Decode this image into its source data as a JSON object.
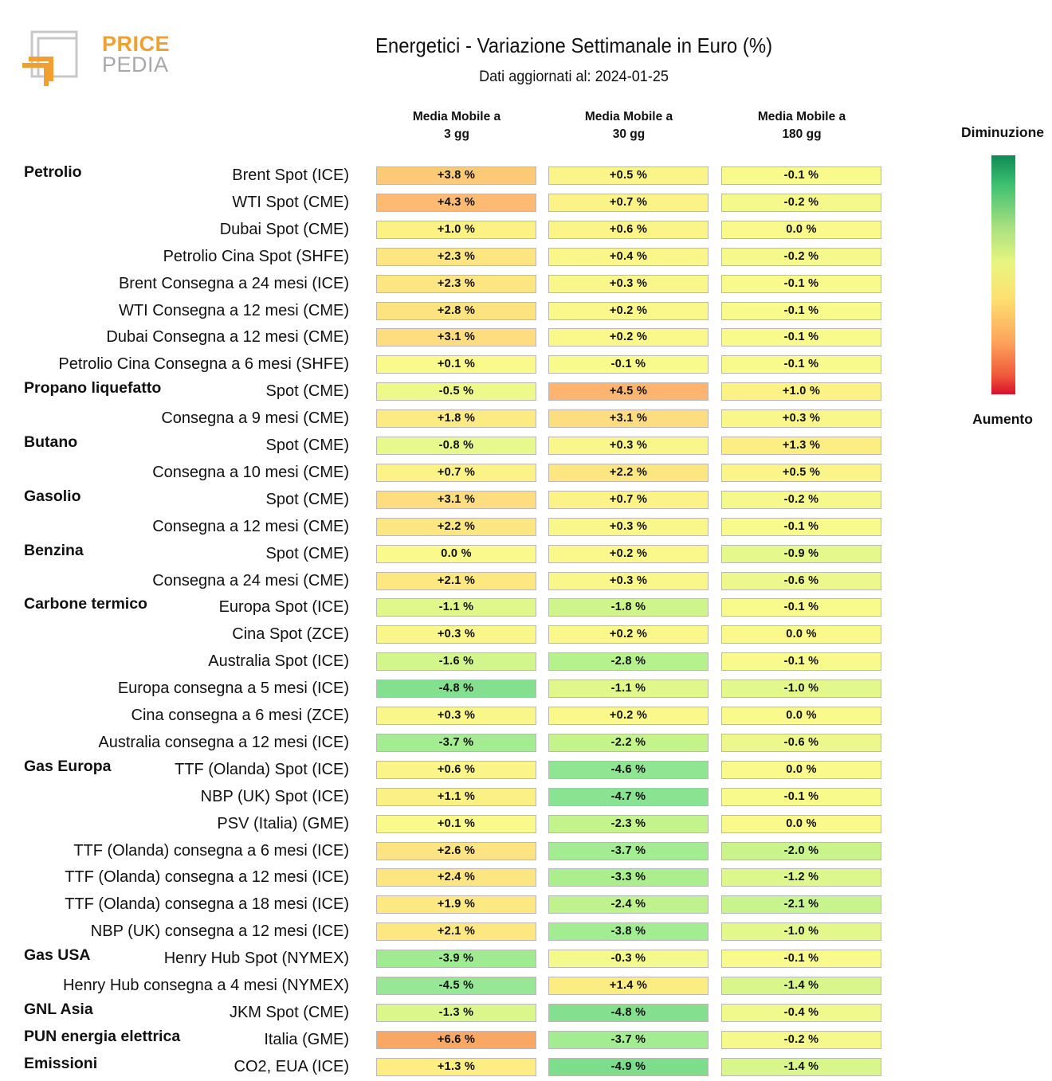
{
  "header": {
    "logo_top": "PRICE",
    "logo_bottom": "PEDIA",
    "title": "Energetici - Variazione Settimanale in Euro (%)",
    "subtitle": "Dati aggiornati al: 2024-01-25"
  },
  "legend": {
    "top_label": "Diminuzione",
    "bottom_label": "Aumento",
    "colors": [
      "#0e8a55",
      "#a8e080",
      "#e8f580",
      "#fde070",
      "#fca45c",
      "#d8102a"
    ]
  },
  "chart_data": {
    "type": "table",
    "columns": [
      "Media Mobile a\n3 gg",
      "Media Mobile a\n30 gg",
      "Media Mobile a\n180 gg"
    ],
    "groups": [
      {
        "name": "Petrolio",
        "rows": [
          {
            "label": "Brent Spot (ICE)",
            "values": [
              "+3.8 %",
              "+0.5 %",
              "-0.1 %"
            ]
          },
          {
            "label": "WTI Spot (CME)",
            "values": [
              "+4.3 %",
              "+0.7 %",
              "-0.2 %"
            ]
          },
          {
            "label": "Dubai Spot (CME)",
            "values": [
              "+1.0 %",
              "+0.6 %",
              "0.0 %"
            ]
          },
          {
            "label": "Petrolio Cina Spot (SHFE)",
            "values": [
              "+2.3 %",
              "+0.4 %",
              "-0.2 %"
            ]
          },
          {
            "label": "Brent Consegna a 24 mesi (ICE)",
            "values": [
              "+2.3 %",
              "+0.3 %",
              "-0.1 %"
            ]
          },
          {
            "label": "WTI Consegna a 12 mesi (CME)",
            "values": [
              "+2.8 %",
              "+0.2 %",
              "-0.1 %"
            ]
          },
          {
            "label": "Dubai Consegna a 12 mesi (CME)",
            "values": [
              "+3.1 %",
              "+0.2 %",
              "-0.1 %"
            ]
          },
          {
            "label": "Petrolio Cina Consegna a 6 mesi (SHFE)",
            "values": [
              "+0.1 %",
              "-0.1 %",
              "-0.1 %"
            ]
          }
        ]
      },
      {
        "name": "Propano liquefatto",
        "rows": [
          {
            "label": "Spot (CME)",
            "values": [
              "-0.5 %",
              "+4.5 %",
              "+1.0 %"
            ]
          },
          {
            "label": "Consegna a 9 mesi (CME)",
            "values": [
              "+1.8 %",
              "+3.1 %",
              "+0.3 %"
            ]
          }
        ]
      },
      {
        "name": "Butano",
        "rows": [
          {
            "label": "Spot (CME)",
            "values": [
              "-0.8 %",
              "+0.3 %",
              "+1.3 %"
            ]
          },
          {
            "label": "Consegna a 10 mesi (CME)",
            "values": [
              "+0.7 %",
              "+2.2 %",
              "+0.5 %"
            ]
          }
        ]
      },
      {
        "name": "Gasolio",
        "rows": [
          {
            "label": "Spot (CME)",
            "values": [
              "+3.1 %",
              "+0.7 %",
              "-0.2 %"
            ]
          },
          {
            "label": "Consegna a 12 mesi (CME)",
            "values": [
              "+2.2 %",
              "+0.3 %",
              "-0.1 %"
            ]
          }
        ]
      },
      {
        "name": "Benzina",
        "rows": [
          {
            "label": "Spot (CME)",
            "values": [
              "0.0 %",
              "+0.2 %",
              "-0.9 %"
            ]
          },
          {
            "label": "Consegna a 24 mesi (CME)",
            "values": [
              "+2.1 %",
              "+0.3 %",
              "-0.6 %"
            ]
          }
        ]
      },
      {
        "name": "Carbone termico",
        "rows": [
          {
            "label": "Europa Spot (ICE)",
            "values": [
              "-1.1 %",
              "-1.8 %",
              "-0.1 %"
            ]
          },
          {
            "label": "Cina Spot (ZCE)",
            "values": [
              "+0.3 %",
              "+0.2 %",
              "0.0 %"
            ]
          },
          {
            "label": "Australia Spot (ICE)",
            "values": [
              "-1.6 %",
              "-2.8 %",
              "-0.1 %"
            ]
          },
          {
            "label": "Europa consegna a 5 mesi (ICE)",
            "values": [
              "-4.8 %",
              "-1.1 %",
              "-1.0 %"
            ]
          },
          {
            "label": "Cina consegna a 6 mesi (ZCE)",
            "values": [
              "+0.3 %",
              "+0.2 %",
              "0.0 %"
            ]
          },
          {
            "label": "Australia consegna a 12 mesi (ICE)",
            "values": [
              "-3.7 %",
              "-2.2 %",
              "-0.6 %"
            ]
          }
        ]
      },
      {
        "name": "Gas Europa",
        "rows": [
          {
            "label": "TTF (Olanda) Spot (ICE)",
            "values": [
              "+0.6 %",
              "-4.6 %",
              "0.0 %"
            ]
          },
          {
            "label": "NBP (UK) Spot (ICE)",
            "values": [
              "+1.1 %",
              "-4.7 %",
              "-0.1 %"
            ]
          },
          {
            "label": "PSV (Italia) (GME)",
            "values": [
              "+0.1 %",
              "-2.3 %",
              "0.0 %"
            ]
          },
          {
            "label": "TTF (Olanda) consegna a 6 mesi (ICE)",
            "values": [
              "+2.6 %",
              "-3.7 %",
              "-2.0 %"
            ]
          },
          {
            "label": "TTF (Olanda) consegna a 12 mesi (ICE)",
            "values": [
              "+2.4 %",
              "-3.3 %",
              "-1.2 %"
            ]
          },
          {
            "label": "TTF (Olanda) consegna a 18 mesi (ICE)",
            "values": [
              "+1.9 %",
              "-2.4 %",
              "-2.1 %"
            ]
          },
          {
            "label": "NBP (UK) consegna a 12 mesi (ICE)",
            "values": [
              "+2.1 %",
              "-3.8 %",
              "-1.0 %"
            ]
          }
        ]
      },
      {
        "name": "Gas USA",
        "rows": [
          {
            "label": "Henry Hub Spot (NYMEX)",
            "values": [
              "-3.9 %",
              "-0.3 %",
              "-0.1 %"
            ]
          },
          {
            "label": "Henry Hub consegna a 4 mesi (NYMEX)",
            "values": [
              "-4.5 %",
              "+1.4 %",
              "-1.4 %"
            ]
          }
        ]
      },
      {
        "name": "GNL Asia",
        "rows": [
          {
            "label": "JKM Spot (CME)",
            "values": [
              "-1.3 %",
              "-4.8 %",
              "-0.4 %"
            ]
          }
        ]
      },
      {
        "name": "PUN energia elettrica",
        "rows": [
          {
            "label": "Italia (GME)",
            "values": [
              "+6.6 %",
              "-3.7 %",
              "-0.2 %"
            ]
          }
        ]
      },
      {
        "name": "Emissioni",
        "rows": [
          {
            "label": "CO2, EUA (ICE)",
            "values": [
              "+1.3 %",
              "-4.9 %",
              "-1.4 %"
            ]
          }
        ]
      }
    ]
  }
}
